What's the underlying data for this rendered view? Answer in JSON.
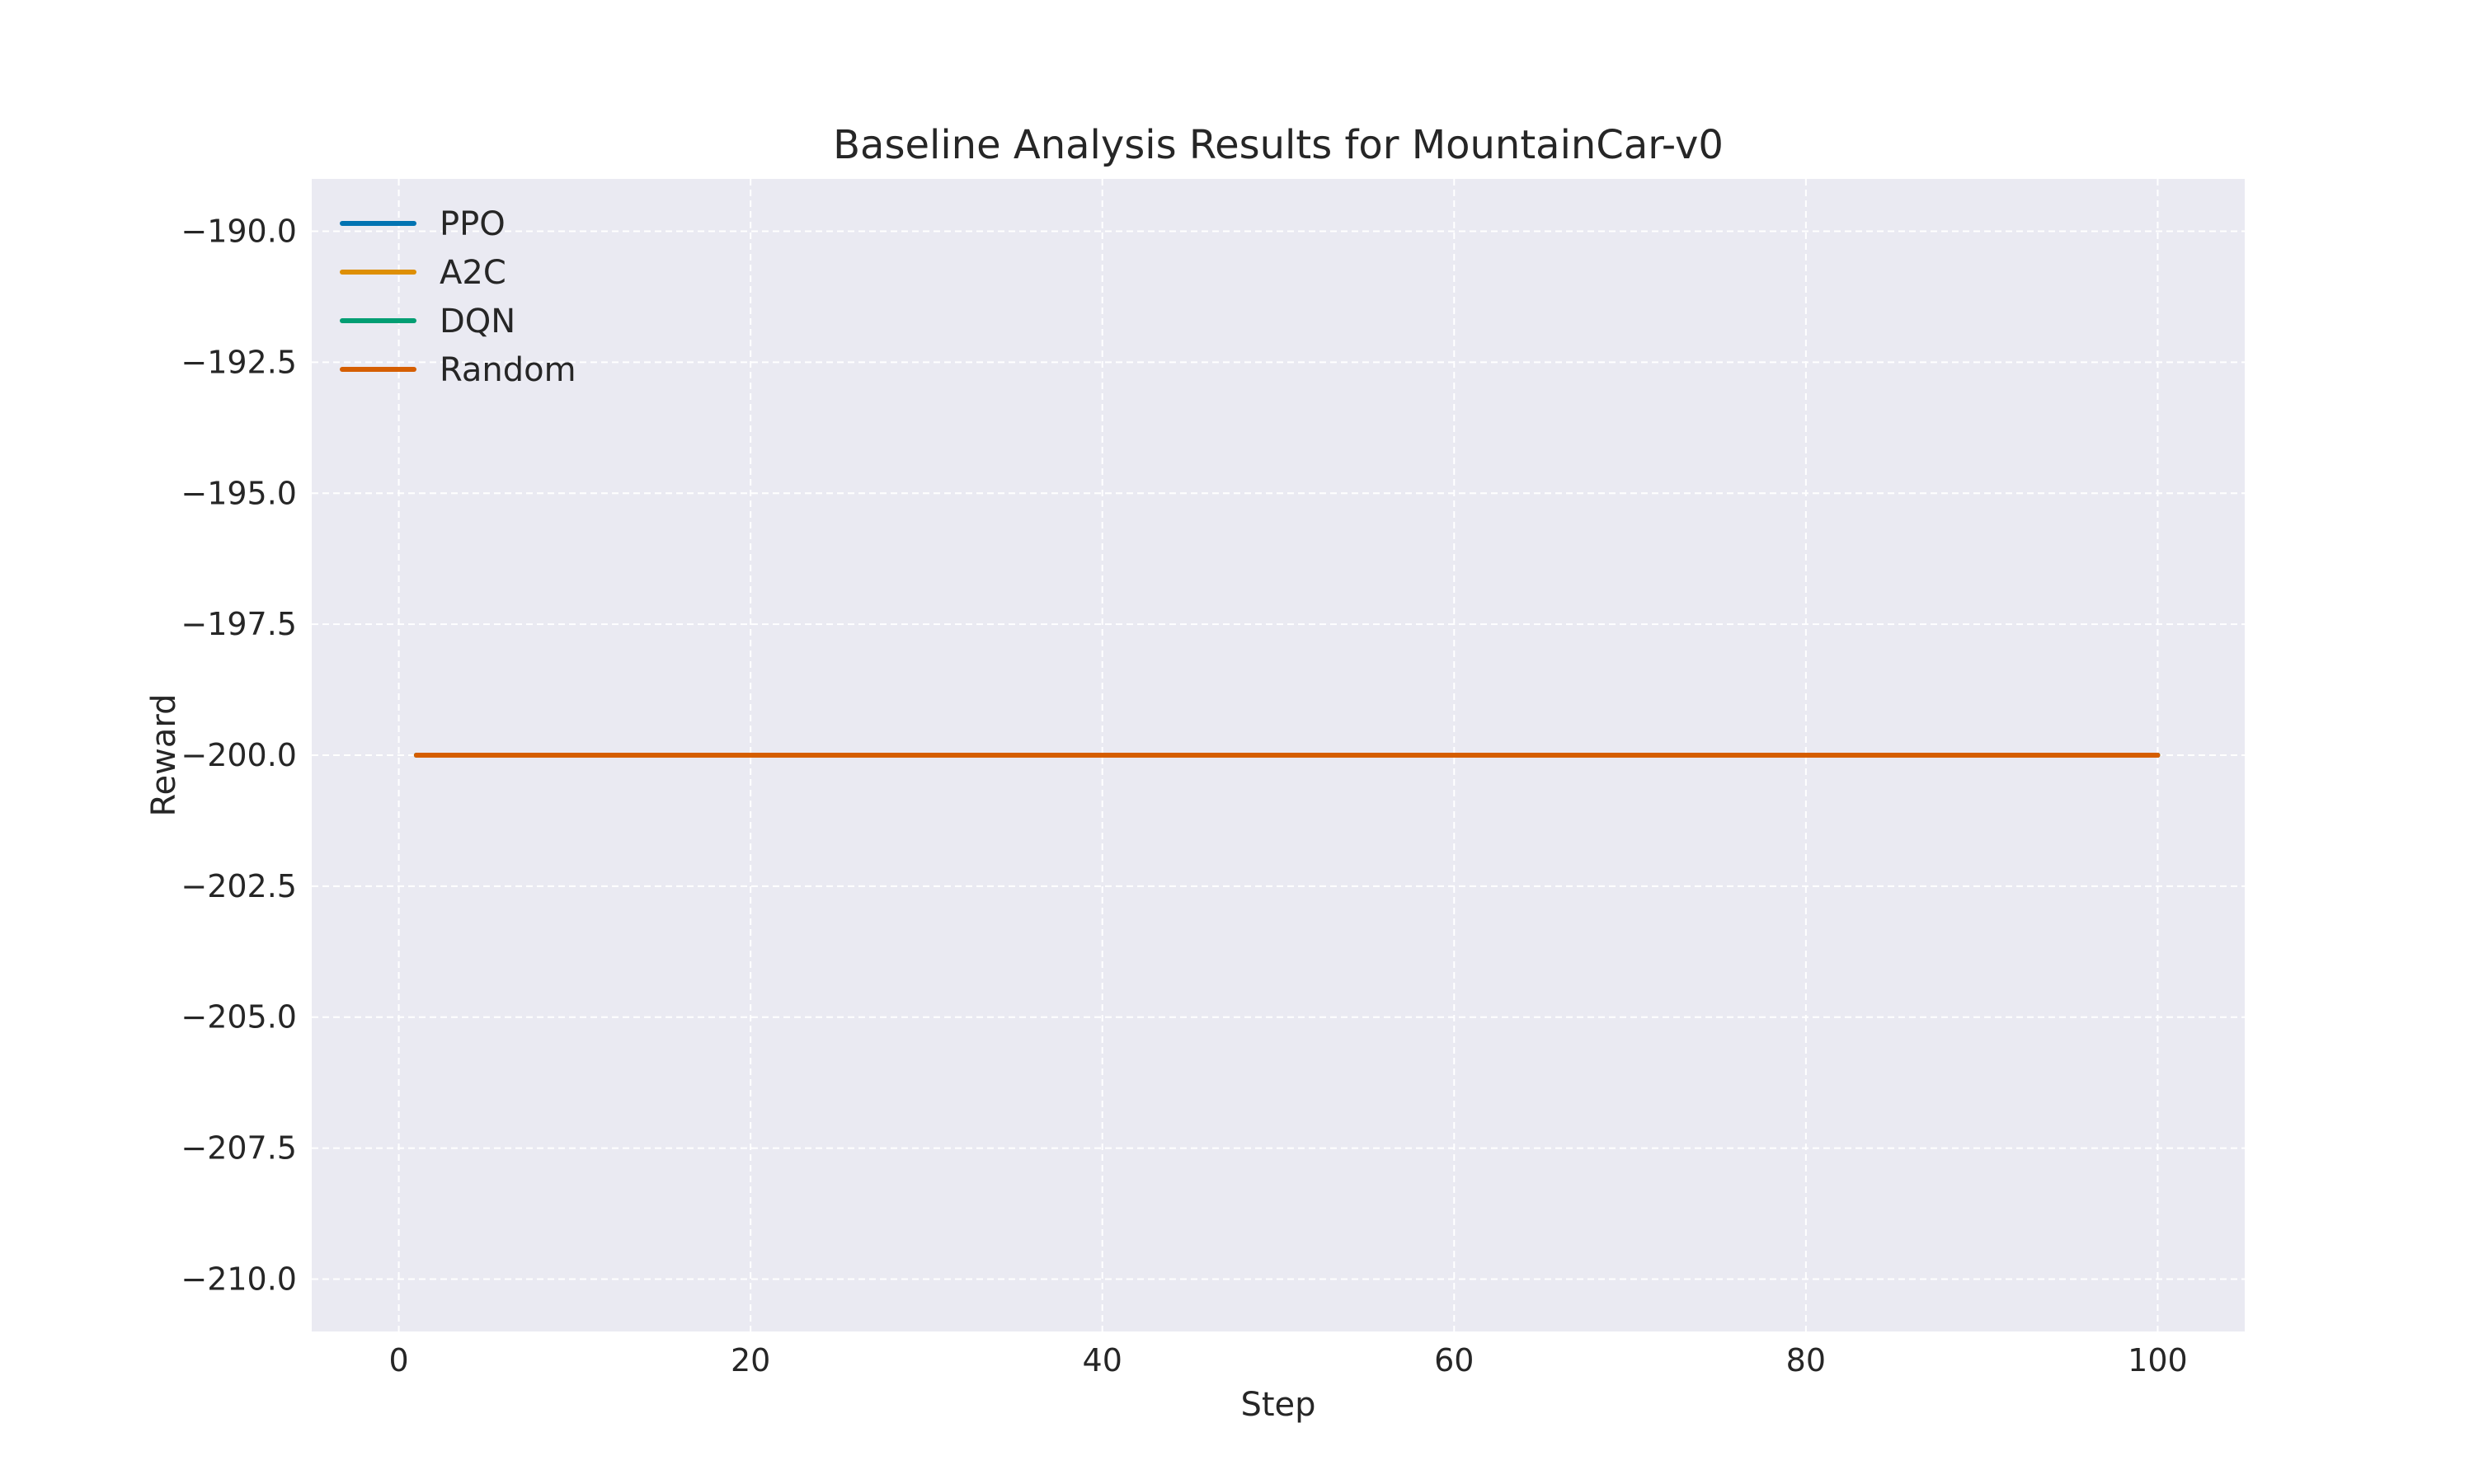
{
  "chart_data": {
    "type": "line",
    "title": "Baseline Analysis Results for MountainCar-v0",
    "xlabel": "Step",
    "ylabel": "Reward",
    "xlim": [
      -4.95,
      104.95
    ],
    "ylim": [
      -211.0,
      -189.0
    ],
    "xticks": [
      0,
      20,
      40,
      60,
      80,
      100
    ],
    "xtick_labels": [
      "0",
      "20",
      "40",
      "60",
      "80",
      "100"
    ],
    "yticks": [
      -190.0,
      -192.5,
      -195.0,
      -197.5,
      -200.0,
      -202.5,
      -205.0,
      -207.5,
      -210.0
    ],
    "ytick_labels": [
      "−190.0",
      "−192.5",
      "−195.0",
      "−197.5",
      "−200.0",
      "−202.5",
      "−205.0",
      "−207.5",
      "−210.0"
    ],
    "grid": true,
    "legend_position": "top-left",
    "background_color": "#eaeaf2",
    "series": [
      {
        "name": "PPO",
        "color": "#0173b2",
        "x": [
          1,
          100
        ],
        "y": [
          -200.0,
          -200.0
        ]
      },
      {
        "name": "A2C",
        "color": "#de8f05",
        "x": [
          1,
          100
        ],
        "y": [
          -200.0,
          -200.0
        ]
      },
      {
        "name": "DQN",
        "color": "#029e73",
        "x": [
          1,
          100
        ],
        "y": [
          -200.0,
          -200.0
        ]
      },
      {
        "name": "Random",
        "color": "#d55e00",
        "x": [
          1,
          100
        ],
        "y": [
          -200.0,
          -200.0
        ]
      }
    ]
  }
}
